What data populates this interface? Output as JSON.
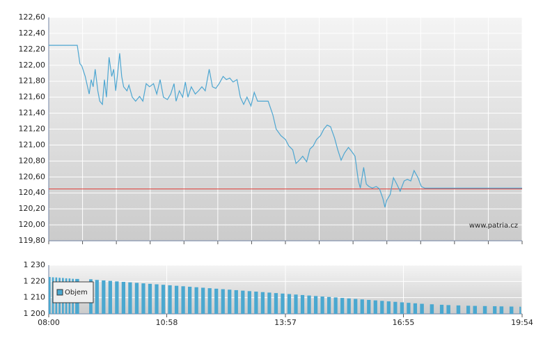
{
  "chart_data": [
    {
      "type": "line",
      "x": [
        0,
        43,
        47,
        50,
        55,
        61,
        64,
        67,
        70,
        74,
        77,
        81,
        84,
        87,
        91,
        95,
        98,
        101,
        104,
        107,
        110,
        113,
        118,
        121,
        126,
        131,
        137,
        142,
        147,
        152,
        158,
        163,
        168,
        173,
        179,
        184,
        189,
        192,
        197,
        202,
        206,
        210,
        215,
        221,
        226,
        231,
        236,
        242,
        247,
        252,
        257,
        263,
        268,
        273,
        278,
        284,
        289,
        294,
        299,
        305,
        310,
        315,
        331,
        338,
        343,
        350,
        357,
        362,
        368,
        373,
        378,
        383,
        389,
        394,
        399,
        404,
        410,
        415,
        420,
        425,
        431,
        436,
        441,
        446,
        452,
        457,
        462,
        467,
        470,
        475,
        479,
        483,
        488,
        494,
        499,
        504,
        507,
        510,
        515,
        520,
        525,
        530,
        536,
        541,
        546,
        551,
        557,
        562,
        567,
        714
      ],
      "series": [
        {
          "color": "#4da6d1",
          "values": [
            122.25,
            122.25,
            122.02,
            121.99,
            121.86,
            121.64,
            121.82,
            121.73,
            121.95,
            121.68,
            121.55,
            121.51,
            121.82,
            121.6,
            122.1,
            121.86,
            121.95,
            121.68,
            121.9,
            122.15,
            121.86,
            121.73,
            121.68,
            121.75,
            121.6,
            121.55,
            121.61,
            121.55,
            121.77,
            121.73,
            121.77,
            121.64,
            121.82,
            121.6,
            121.57,
            121.64,
            121.77,
            121.55,
            121.68,
            121.6,
            121.79,
            121.6,
            121.73,
            121.64,
            121.68,
            121.73,
            121.68,
            121.95,
            121.73,
            121.71,
            121.77,
            121.86,
            121.82,
            121.84,
            121.79,
            121.82,
            121.6,
            121.51,
            121.6,
            121.49,
            121.66,
            121.55,
            121.55,
            121.38,
            121.2,
            121.12,
            121.07,
            120.99,
            120.94,
            120.77,
            120.81,
            120.86,
            120.79,
            120.95,
            120.99,
            121.07,
            121.12,
            121.2,
            121.25,
            121.23,
            121.09,
            120.94,
            120.81,
            120.9,
            120.97,
            120.92,
            120.86,
            120.55,
            120.46,
            120.72,
            120.51,
            120.48,
            120.46,
            120.48,
            120.45,
            120.33,
            120.22,
            120.31,
            120.38,
            120.59,
            120.51,
            120.42,
            120.55,
            120.57,
            120.55,
            120.68,
            120.59,
            120.48,
            120.46,
            120.46
          ]
        }
      ],
      "reference_line": {
        "value": 120.45,
        "color": "#e0403a"
      },
      "watermark": "www.patria.cz",
      "xlim": [
        0,
        714
      ],
      "xgrid": [
        0,
        51,
        102,
        153,
        204,
        255,
        306,
        357,
        408,
        459,
        510,
        561,
        612,
        663,
        714
      ],
      "ylim": [
        119.8,
        122.6
      ],
      "yticks": [
        {
          "value": 119.8,
          "label": "119,80"
        },
        {
          "value": 120.0,
          "label": "120,00"
        },
        {
          "value": 120.2,
          "label": "120,20"
        },
        {
          "value": 120.4,
          "label": "120,40"
        },
        {
          "value": 120.6,
          "label": "120,60"
        },
        {
          "value": 120.8,
          "label": "120,80"
        },
        {
          "value": 121.0,
          "label": "121,00"
        },
        {
          "value": 121.2,
          "label": "121,20"
        },
        {
          "value": 121.4,
          "label": "121,40"
        },
        {
          "value": 121.6,
          "label": "121,60"
        },
        {
          "value": 121.8,
          "label": "121,80"
        },
        {
          "value": 122.0,
          "label": "122,00"
        },
        {
          "value": 122.2,
          "label": "122,20"
        },
        {
          "value": 122.4,
          "label": "122,40"
        },
        {
          "value": 122.6,
          "label": "122,60"
        }
      ],
      "grid": true
    },
    {
      "type": "bar",
      "series": [
        {
          "name": "Objem",
          "color": "#4aa8d0",
          "x": [
            0,
            5,
            10,
            15,
            20,
            25,
            30,
            35,
            40,
            61,
            70,
            80,
            90,
            100,
            110,
            120,
            130,
            140,
            150,
            160,
            170,
            180,
            190,
            200,
            210,
            220,
            230,
            240,
            250,
            260,
            270,
            280,
            290,
            300,
            310,
            320,
            330,
            340,
            350,
            360,
            370,
            380,
            390,
            400,
            410,
            420,
            430,
            440,
            450,
            460,
            470,
            480,
            490,
            500,
            510,
            520,
            530,
            540,
            550,
            560,
            575,
            590,
            600,
            615,
            630,
            640,
            655,
            670,
            680,
            695,
            710
          ],
          "values": [
            1222.7,
            1222.5,
            1222.4,
            1222.2,
            1222.1,
            1221.9,
            1221.8,
            1221.6,
            1221.5,
            1221.3,
            1220.9,
            1220.6,
            1220.3,
            1220.0,
            1219.7,
            1219.4,
            1219.1,
            1218.8,
            1218.5,
            1218.2,
            1217.9,
            1217.6,
            1217.3,
            1217.0,
            1216.7,
            1216.4,
            1216.1,
            1215.8,
            1215.5,
            1215.2,
            1214.9,
            1214.6,
            1214.3,
            1214.0,
            1213.7,
            1213.4,
            1213.1,
            1212.8,
            1212.5,
            1212.2,
            1211.9,
            1211.6,
            1211.3,
            1211.0,
            1210.7,
            1210.4,
            1210.1,
            1209.8,
            1209.5,
            1209.2,
            1208.9,
            1208.6,
            1208.3,
            1208.0,
            1207.7,
            1207.4,
            1207.1,
            1206.8,
            1206.5,
            1206.2,
            1205.9,
            1205.6,
            1205.4,
            1205.2,
            1205.0,
            1204.9,
            1204.8,
            1204.7,
            1204.6,
            1204.5,
            1204.4
          ]
        }
      ],
      "legend": "upper left",
      "xlim": [
        0,
        714
      ],
      "xticks": [
        {
          "value": 0,
          "label": "08:00"
        },
        {
          "value": 178,
          "label": "10:58"
        },
        {
          "value": 357,
          "label": "13:57"
        },
        {
          "value": 535,
          "label": "16:55"
        },
        {
          "value": 714,
          "label": "19:54"
        }
      ],
      "ylim": [
        1200,
        1230
      ],
      "yticks": [
        {
          "value": 1200,
          "label": "1 200"
        },
        {
          "value": 1210,
          "label": "1 210"
        },
        {
          "value": 1220,
          "label": "1 220"
        },
        {
          "value": 1230,
          "label": "1 230"
        }
      ],
      "grid": true
    }
  ]
}
